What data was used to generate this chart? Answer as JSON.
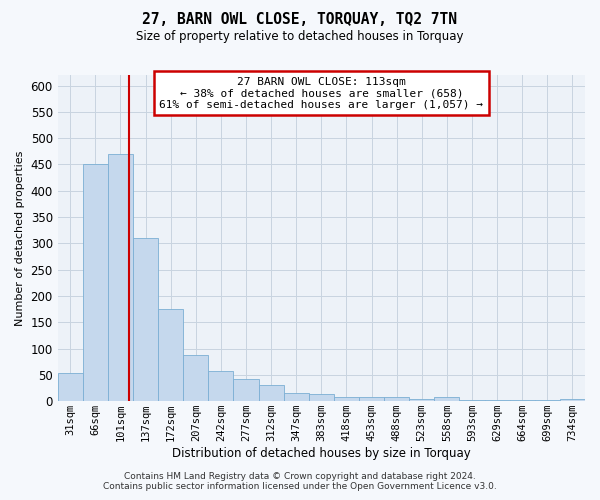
{
  "title": "27, BARN OWL CLOSE, TORQUAY, TQ2 7TN",
  "subtitle": "Size of property relative to detached houses in Torquay",
  "xlabel": "Distribution of detached houses by size in Torquay",
  "ylabel": "Number of detached properties",
  "categories": [
    "31sqm",
    "66sqm",
    "101sqm",
    "137sqm",
    "172sqm",
    "207sqm",
    "242sqm",
    "277sqm",
    "312sqm",
    "347sqm",
    "383sqm",
    "418sqm",
    "453sqm",
    "488sqm",
    "523sqm",
    "558sqm",
    "593sqm",
    "629sqm",
    "664sqm",
    "699sqm",
    "734sqm"
  ],
  "values": [
    53,
    450,
    470,
    310,
    175,
    88,
    58,
    43,
    30,
    15,
    13,
    8,
    8,
    7,
    5,
    8,
    3,
    3,
    3,
    3,
    5
  ],
  "bar_color": "#c5d8ed",
  "bar_edge_color": "#7bafd4",
  "grid_color": "#c8d4e0",
  "background_color": "#f5f8fc",
  "plot_bg_color": "#edf2f8",
  "red_line_x": 2.33,
  "annotation_line1": "27 BARN OWL CLOSE: 113sqm",
  "annotation_line2": "← 38% of detached houses are smaller (658)",
  "annotation_line3": "61% of semi-detached houses are larger (1,057) →",
  "annotation_box_color": "#ffffff",
  "annotation_border_color": "#cc0000",
  "footnote1": "Contains HM Land Registry data © Crown copyright and database right 2024.",
  "footnote2": "Contains public sector information licensed under the Open Government Licence v3.0.",
  "ylim": [
    0,
    620
  ],
  "yticks": [
    0,
    50,
    100,
    150,
    200,
    250,
    300,
    350,
    400,
    450,
    500,
    550,
    600
  ]
}
